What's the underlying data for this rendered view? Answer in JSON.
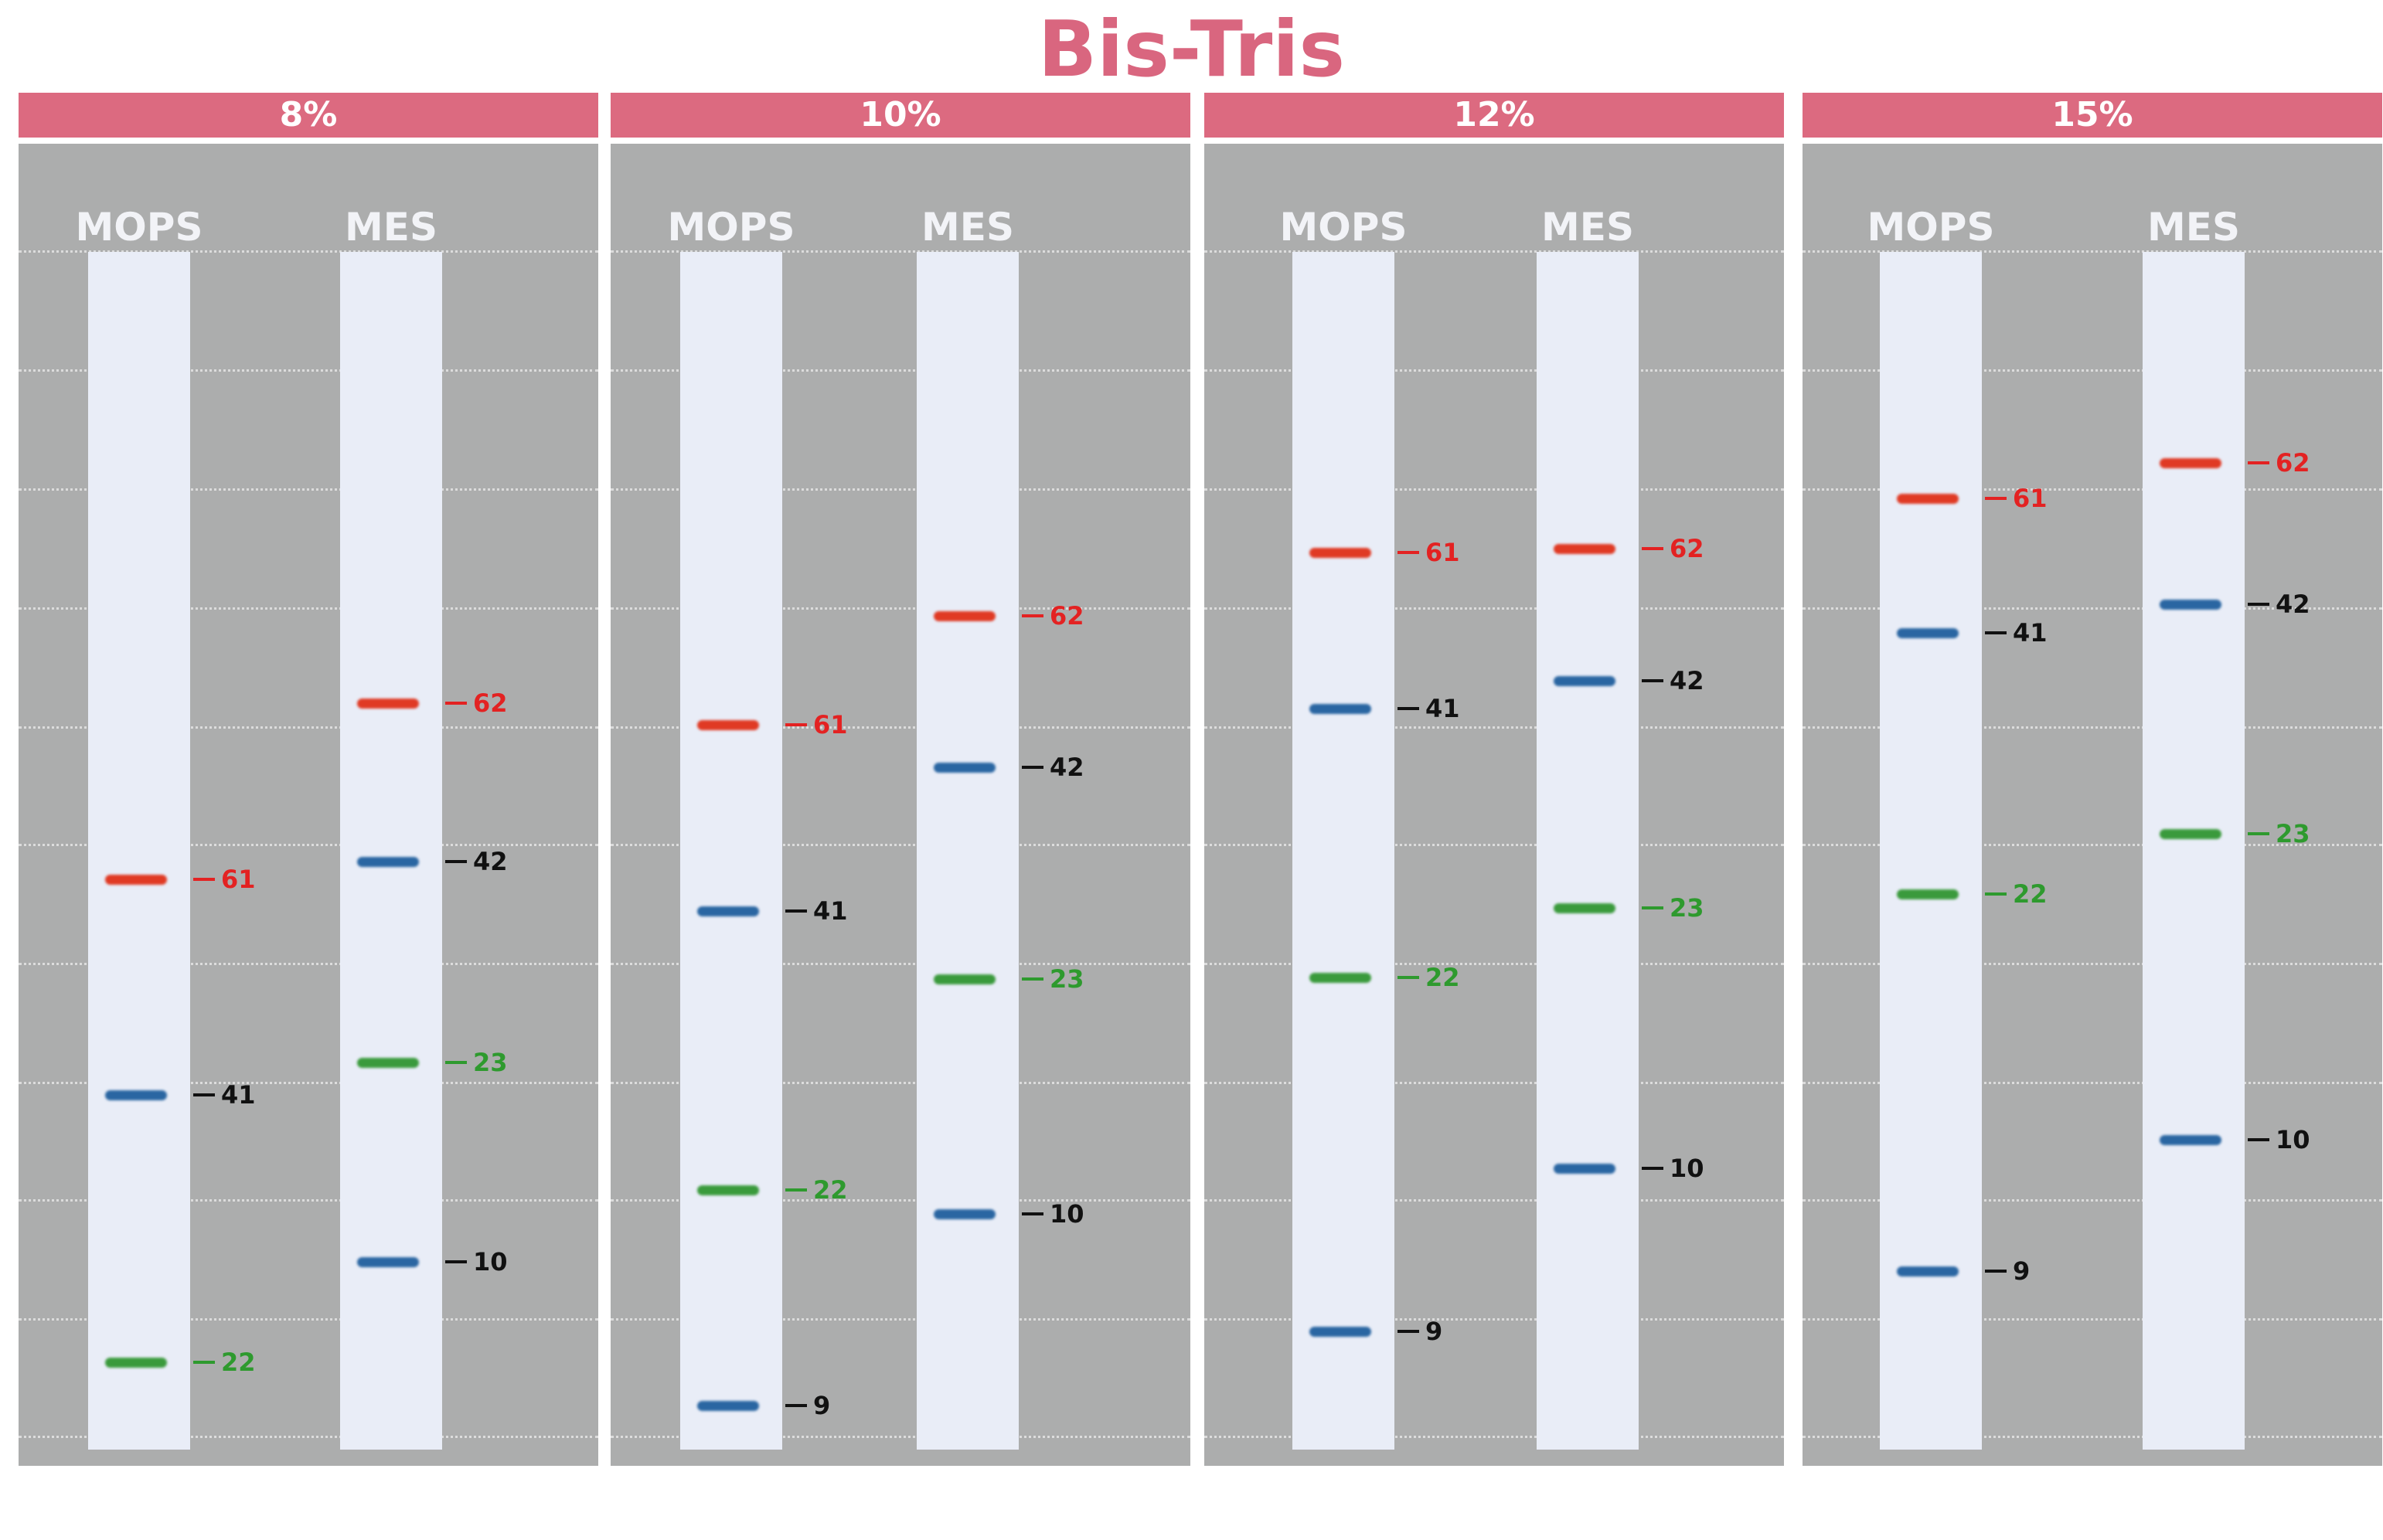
{
  "title": "Bis-Tris",
  "colors": {
    "title": "#d9667f",
    "header": "#dc6a80",
    "panel_bg": "#acadad",
    "lane_bg": "#e9edf7",
    "bands": {
      "red": "#e03a24",
      "blue": "#2a66a2",
      "green": "#3a9a3c"
    },
    "labels": {
      "red": "#e32222",
      "blue": "#111111",
      "green": "#2e9a2e"
    }
  },
  "panels": [
    {
      "header": "8%",
      "lanes": [
        {
          "label": "MOPS",
          "bands": [
            {
              "label": "61",
              "color": "red",
              "level": 0.524
            },
            {
              "label": "41",
              "color": "blue",
              "level": 0.704
            },
            {
              "label": "22",
              "color": "green",
              "level": 0.927
            }
          ]
        },
        {
          "label": "MES",
          "bands": [
            {
              "label": "62",
              "color": "red",
              "level": 0.377
            },
            {
              "label": "42",
              "color": "blue",
              "level": 0.509
            },
            {
              "label": "23",
              "color": "green",
              "level": 0.677
            },
            {
              "label": "10",
              "color": "blue",
              "level": 0.843
            }
          ]
        }
      ]
    },
    {
      "header": "10%",
      "lanes": [
        {
          "label": "MOPS",
          "bands": [
            {
              "label": "61",
              "color": "red",
              "level": 0.395
            },
            {
              "label": "41",
              "color": "blue",
              "level": 0.55
            },
            {
              "label": "22",
              "color": "green",
              "level": 0.783
            },
            {
              "label": "9",
              "color": "blue",
              "level": 0.963
            }
          ]
        },
        {
          "label": "MES",
          "bands": [
            {
              "label": "62",
              "color": "red",
              "level": 0.304
            },
            {
              "label": "42",
              "color": "blue",
              "level": 0.43
            },
            {
              "label": "23",
              "color": "green",
              "level": 0.607
            },
            {
              "label": "10",
              "color": "blue",
              "level": 0.803
            }
          ]
        }
      ]
    },
    {
      "header": "12%",
      "lanes": [
        {
          "label": "MOPS",
          "bands": [
            {
              "label": "61",
              "color": "red",
              "level": 0.251
            },
            {
              "label": "41",
              "color": "blue",
              "level": 0.381
            },
            {
              "label": "22",
              "color": "green",
              "level": 0.606
            },
            {
              "label": "9",
              "color": "blue",
              "level": 0.901
            }
          ]
        },
        {
          "label": "MES",
          "bands": [
            {
              "label": "62",
              "color": "red",
              "level": 0.248
            },
            {
              "label": "42",
              "color": "blue",
              "level": 0.358
            },
            {
              "label": "23",
              "color": "green",
              "level": 0.548
            },
            {
              "label": "10",
              "color": "blue",
              "level": 0.765
            }
          ]
        }
      ]
    },
    {
      "header": "15%",
      "lanes": [
        {
          "label": "MOPS",
          "bands": [
            {
              "label": "61",
              "color": "red",
              "level": 0.206
            },
            {
              "label": "41",
              "color": "blue",
              "level": 0.318
            },
            {
              "label": "22",
              "color": "green",
              "level": 0.536
            },
            {
              "label": "9",
              "color": "blue",
              "level": 0.851
            }
          ]
        },
        {
          "label": "MES",
          "bands": [
            {
              "label": "62",
              "color": "red",
              "level": 0.176
            },
            {
              "label": "42",
              "color": "blue",
              "level": 0.294
            },
            {
              "label": "23",
              "color": "green",
              "level": 0.486
            },
            {
              "label": "10",
              "color": "blue",
              "level": 0.741
            }
          ]
        }
      ]
    }
  ]
}
